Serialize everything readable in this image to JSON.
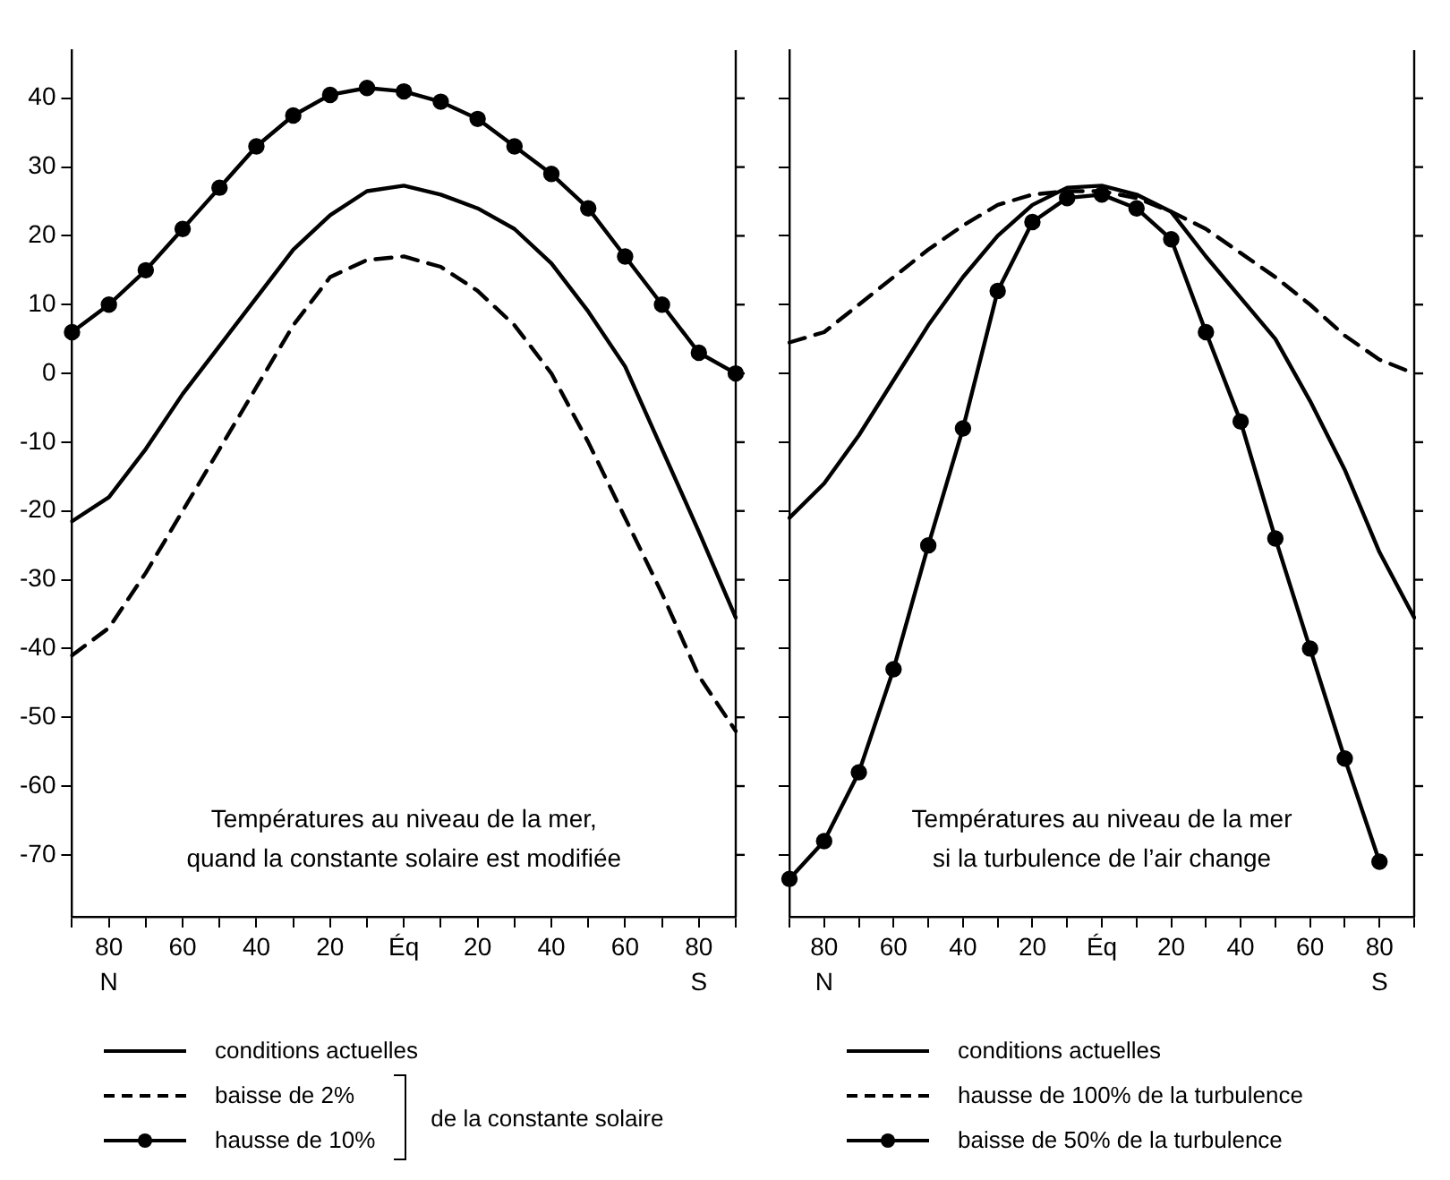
{
  "chart_data": [
    {
      "type": "line",
      "title": "Températures au niveau de la mer,\nquand la constante solaire est modifiée",
      "categories": [
        null,
        "80",
        null,
        "60",
        null,
        "40",
        null,
        "20",
        null,
        "Éq",
        null,
        "20",
        null,
        "40",
        null,
        "60",
        null,
        "80",
        null
      ],
      "series": [
        {
          "name": "conditions actuelles",
          "color": "#000000",
          "line_style": "solid",
          "marker": "none",
          "values": [
            -21.5,
            -18,
            -11,
            -3,
            4,
            11,
            18,
            23,
            26.5,
            27.3,
            26,
            24,
            21,
            16,
            9,
            1,
            -11,
            -23,
            -35.5
          ]
        },
        {
          "name": "baisse de 2%",
          "color": "#000000",
          "line_style": "dashed",
          "marker": "none",
          "values": [
            -41,
            -37,
            -29,
            -20,
            -11,
            -2,
            7,
            14,
            16.5,
            17,
            15.5,
            12,
            7,
            0,
            -10,
            -21,
            -32,
            -44,
            -52
          ]
        },
        {
          "name": "hausse de 10%",
          "color": "#000000",
          "line_style": "solid",
          "marker": "circle",
          "values": [
            6,
            10,
            15,
            21,
            27,
            33,
            37.5,
            40.5,
            41.5,
            41,
            39.5,
            37,
            33,
            29,
            24,
            17,
            10,
            3,
            0
          ]
        }
      ],
      "legend_title": "de la constante solaire",
      "legend": "bottom",
      "grid": false,
      "ylim": [
        -79,
        47
      ],
      "yticks": [
        -70,
        -60,
        -50,
        -40,
        -30,
        -20,
        -10,
        0,
        10,
        20,
        30,
        40
      ],
      "annotations": [
        "N",
        "S"
      ]
    },
    {
      "type": "line",
      "title": "Températures au niveau de la mer\nsi la turbulence de l’air change",
      "categories": [
        null,
        "80",
        null,
        "60",
        null,
        "40",
        null,
        "20",
        null,
        "Éq",
        null,
        "20",
        null,
        "40",
        null,
        "60",
        null,
        "80",
        null
      ],
      "series": [
        {
          "name": "conditions actuelles",
          "color": "#000000",
          "line_style": "solid",
          "marker": "none",
          "values": [
            -21,
            -16,
            -9,
            -1,
            7,
            14,
            20,
            24.5,
            27,
            27.3,
            26,
            23.5,
            17,
            11,
            5,
            -4,
            -14,
            -26,
            -35.5
          ]
        },
        {
          "name": "hausse de 100% de la turbulence",
          "color": "#000000",
          "line_style": "dashed",
          "marker": "none",
          "values": [
            4.5,
            6,
            10,
            14,
            18,
            21.5,
            24.5,
            26,
            26.5,
            26.5,
            25.5,
            23.5,
            21,
            17.5,
            14,
            10,
            5.5,
            2,
            0
          ]
        },
        {
          "name": "baisse de 50% de la turbulence",
          "color": "#000000",
          "line_style": "solid",
          "marker": "circle",
          "values": [
            -73.5,
            -68,
            -58,
            -43,
            -25,
            -8,
            12,
            22,
            25.5,
            26,
            24,
            19.5,
            6,
            -7,
            -24,
            -40,
            -56,
            -71,
            null
          ]
        }
      ],
      "legend": "bottom",
      "grid": false,
      "tick_labels": "x",
      "ylim": [
        -79,
        47
      ],
      "yticks": [
        -70,
        -60,
        -50,
        -40,
        -30,
        -20,
        -10,
        0,
        10,
        20,
        30,
        40
      ],
      "annotations": [
        "N",
        "S"
      ]
    }
  ]
}
